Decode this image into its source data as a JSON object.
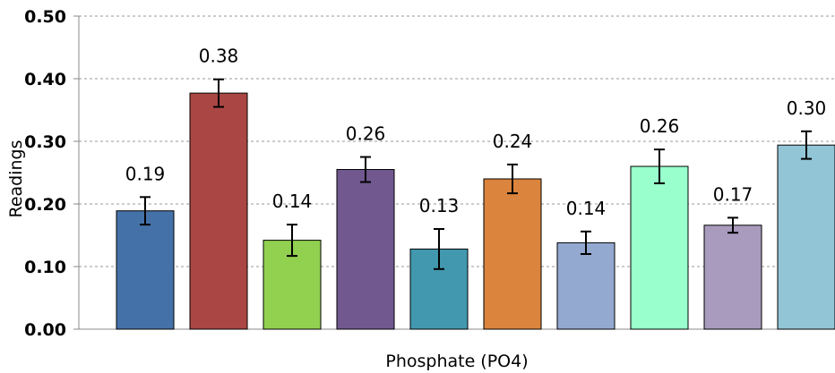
{
  "chart_data": {
    "type": "bar",
    "xlabel": "Phosphate (PO4)",
    "ylabel": "Readings",
    "ylim": [
      0,
      0.5
    ],
    "yticks": [
      "0.00",
      "0.10",
      "0.20",
      "0.30",
      "0.40",
      "0.50"
    ],
    "grid": true,
    "legend": "none",
    "series": [
      {
        "values": [
          0.19,
          0.38,
          0.14,
          0.26,
          0.13,
          0.24,
          0.14,
          0.26,
          0.17,
          0.3
        ],
        "bar_heights": [
          0.189,
          0.377,
          0.142,
          0.255,
          0.128,
          0.24,
          0.138,
          0.26,
          0.166,
          0.294
        ],
        "error_bars": [
          0.022,
          0.022,
          0.025,
          0.02,
          0.032,
          0.023,
          0.018,
          0.027,
          0.012,
          0.022
        ],
        "data_labels": [
          "0.19",
          "0.38",
          "0.14",
          "0.26",
          "0.13",
          "0.24",
          "0.14",
          "0.26",
          "0.17",
          "0.30"
        ],
        "colors": [
          "#4472A8",
          "#AA4643",
          "#92D050",
          "#71588F",
          "#4198AF",
          "#DB843D",
          "#93A9CF",
          "#99FFCC",
          "#A99BBD",
          "#92C5D6"
        ]
      }
    ]
  }
}
